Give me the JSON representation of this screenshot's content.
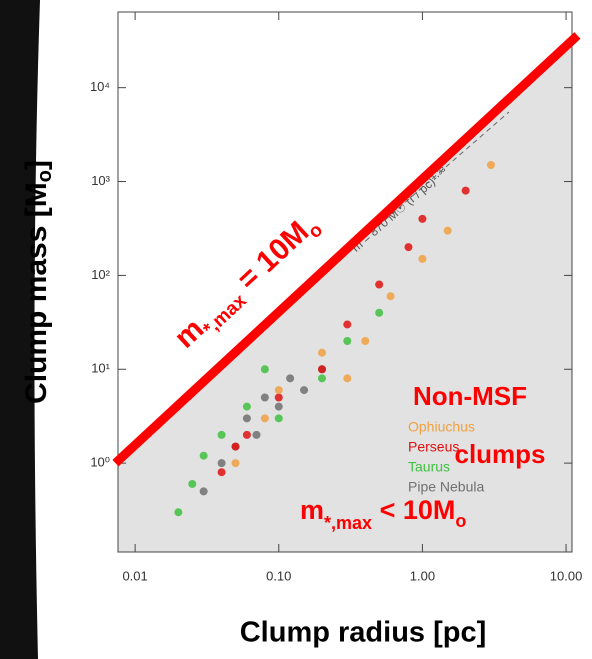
{
  "chart_data": {
    "type": "scatter",
    "x_label": "Clump radius [pc]",
    "y_label": "Clump mass [M",
    "y_label_sub": "o",
    "y_label_end": "]",
    "xlog": true,
    "ylog": true,
    "xlim": [
      0.0076,
      11
    ],
    "ylim": [
      0.113,
      64000
    ],
    "xticks": [
      0.01,
      {
        "value": 0.1,
        "label": "0.10"
      },
      {
        "value": 1,
        "label": "1.00"
      },
      {
        "value": 10,
        "label": "10.00"
      }
    ],
    "yticks": [
      {
        "value": 1,
        "label": "10⁰"
      },
      {
        "value": 10,
        "label": "10¹"
      },
      {
        "value": 100,
        "label": "10²"
      },
      {
        "value": 1000,
        "label": "10³"
      },
      {
        "value": 10000,
        "label": "10⁴"
      }
    ],
    "series": [
      {
        "name": "Pipe Nebula",
        "color": "#707070",
        "x": [
          0.03,
          0.04,
          0.05,
          0.06,
          0.07,
          0.08,
          0.1,
          0.12,
          0.15,
          0.2
        ],
        "values": [
          0.5,
          1,
          1.5,
          3,
          2,
          5,
          4,
          8,
          6,
          10
        ]
      },
      {
        "name": "Taurus",
        "color": "#3fbf3f",
        "x": [
          0.02,
          0.025,
          0.03,
          0.04,
          0.06,
          0.08,
          0.1,
          0.2,
          0.3,
          0.5
        ],
        "values": [
          0.3,
          0.6,
          1.2,
          2,
          4,
          10,
          3,
          8,
          20,
          40
        ]
      },
      {
        "name": "Perseus",
        "color": "#e01010",
        "x": [
          0.04,
          0.05,
          0.06,
          0.1,
          0.2,
          0.3,
          0.5,
          0.8,
          1,
          2
        ],
        "values": [
          0.8,
          1.5,
          2,
          5,
          10,
          30,
          80,
          200,
          400,
          800
        ]
      },
      {
        "name": "Ophiuchus",
        "color": "#f0a040",
        "x": [
          0.05,
          0.08,
          0.1,
          0.2,
          0.3,
          0.4,
          0.6,
          1,
          1.5,
          3
        ],
        "values": [
          1,
          3,
          6,
          15,
          8,
          20,
          60,
          150,
          300,
          1500
        ]
      }
    ],
    "limit_line": {
      "color": "#ff0000",
      "x": [
        0.0073,
        12
      ],
      "y": [
        1,
        36000
      ],
      "label": [
        "m",
        "*,max",
        " = 10M",
        "o"
      ]
    },
    "fit_line": {
      "label": "m = 870 M☉ (r / pc)¹·³³",
      "x": [
        0.05,
        4
      ],
      "y": [
        16,
        5500
      ]
    },
    "annotation": [
      "Non-MSF",
      "clumps",
      "m",
      "*,max",
      " < 10M",
      "o"
    ]
  }
}
